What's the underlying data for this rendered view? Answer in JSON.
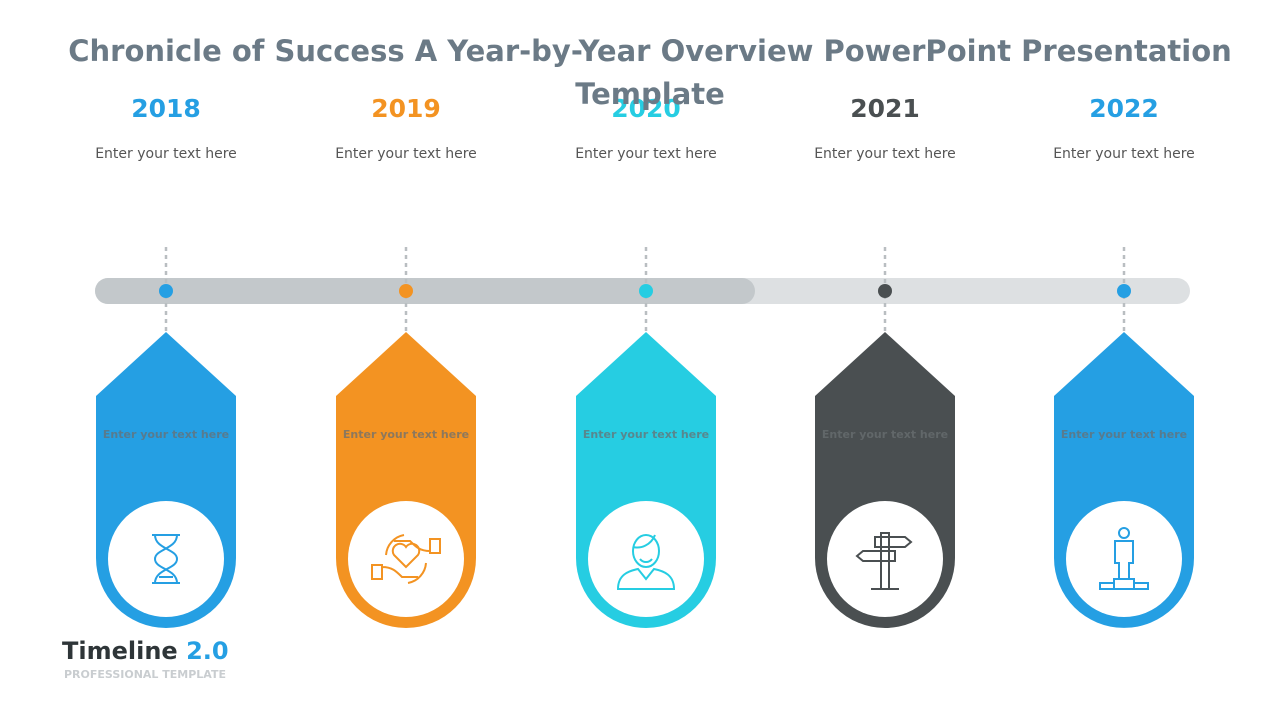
{
  "header": {
    "title_lines": [
      "Chronicle of Success A Year-by-Year Overview PowerPoint Presentation",
      "Template"
    ]
  },
  "items": [
    {
      "year": "2018",
      "text": "Enter your text here",
      "card_text": "Enter your text here",
      "color": "#259fe3"
    },
    {
      "year": "2019",
      "text": "Enter your text here",
      "card_text": "Enter your text here",
      "color": "#f39322"
    },
    {
      "year": "2020",
      "text": "Enter your text here",
      "card_text": "Enter your text here",
      "color": "#26cde2"
    },
    {
      "year": "2021",
      "text": "Enter your text here",
      "card_text": "Enter your text here",
      "color": "#4a4f51"
    },
    {
      "year": "2022",
      "text": "Enter your text here",
      "card_text": "Enter your text here",
      "color": "#259fe3"
    }
  ],
  "footer": {
    "brand": "Timeline",
    "version": "2.0",
    "tagline": "PROFESSIONAL TEMPLATE"
  }
}
